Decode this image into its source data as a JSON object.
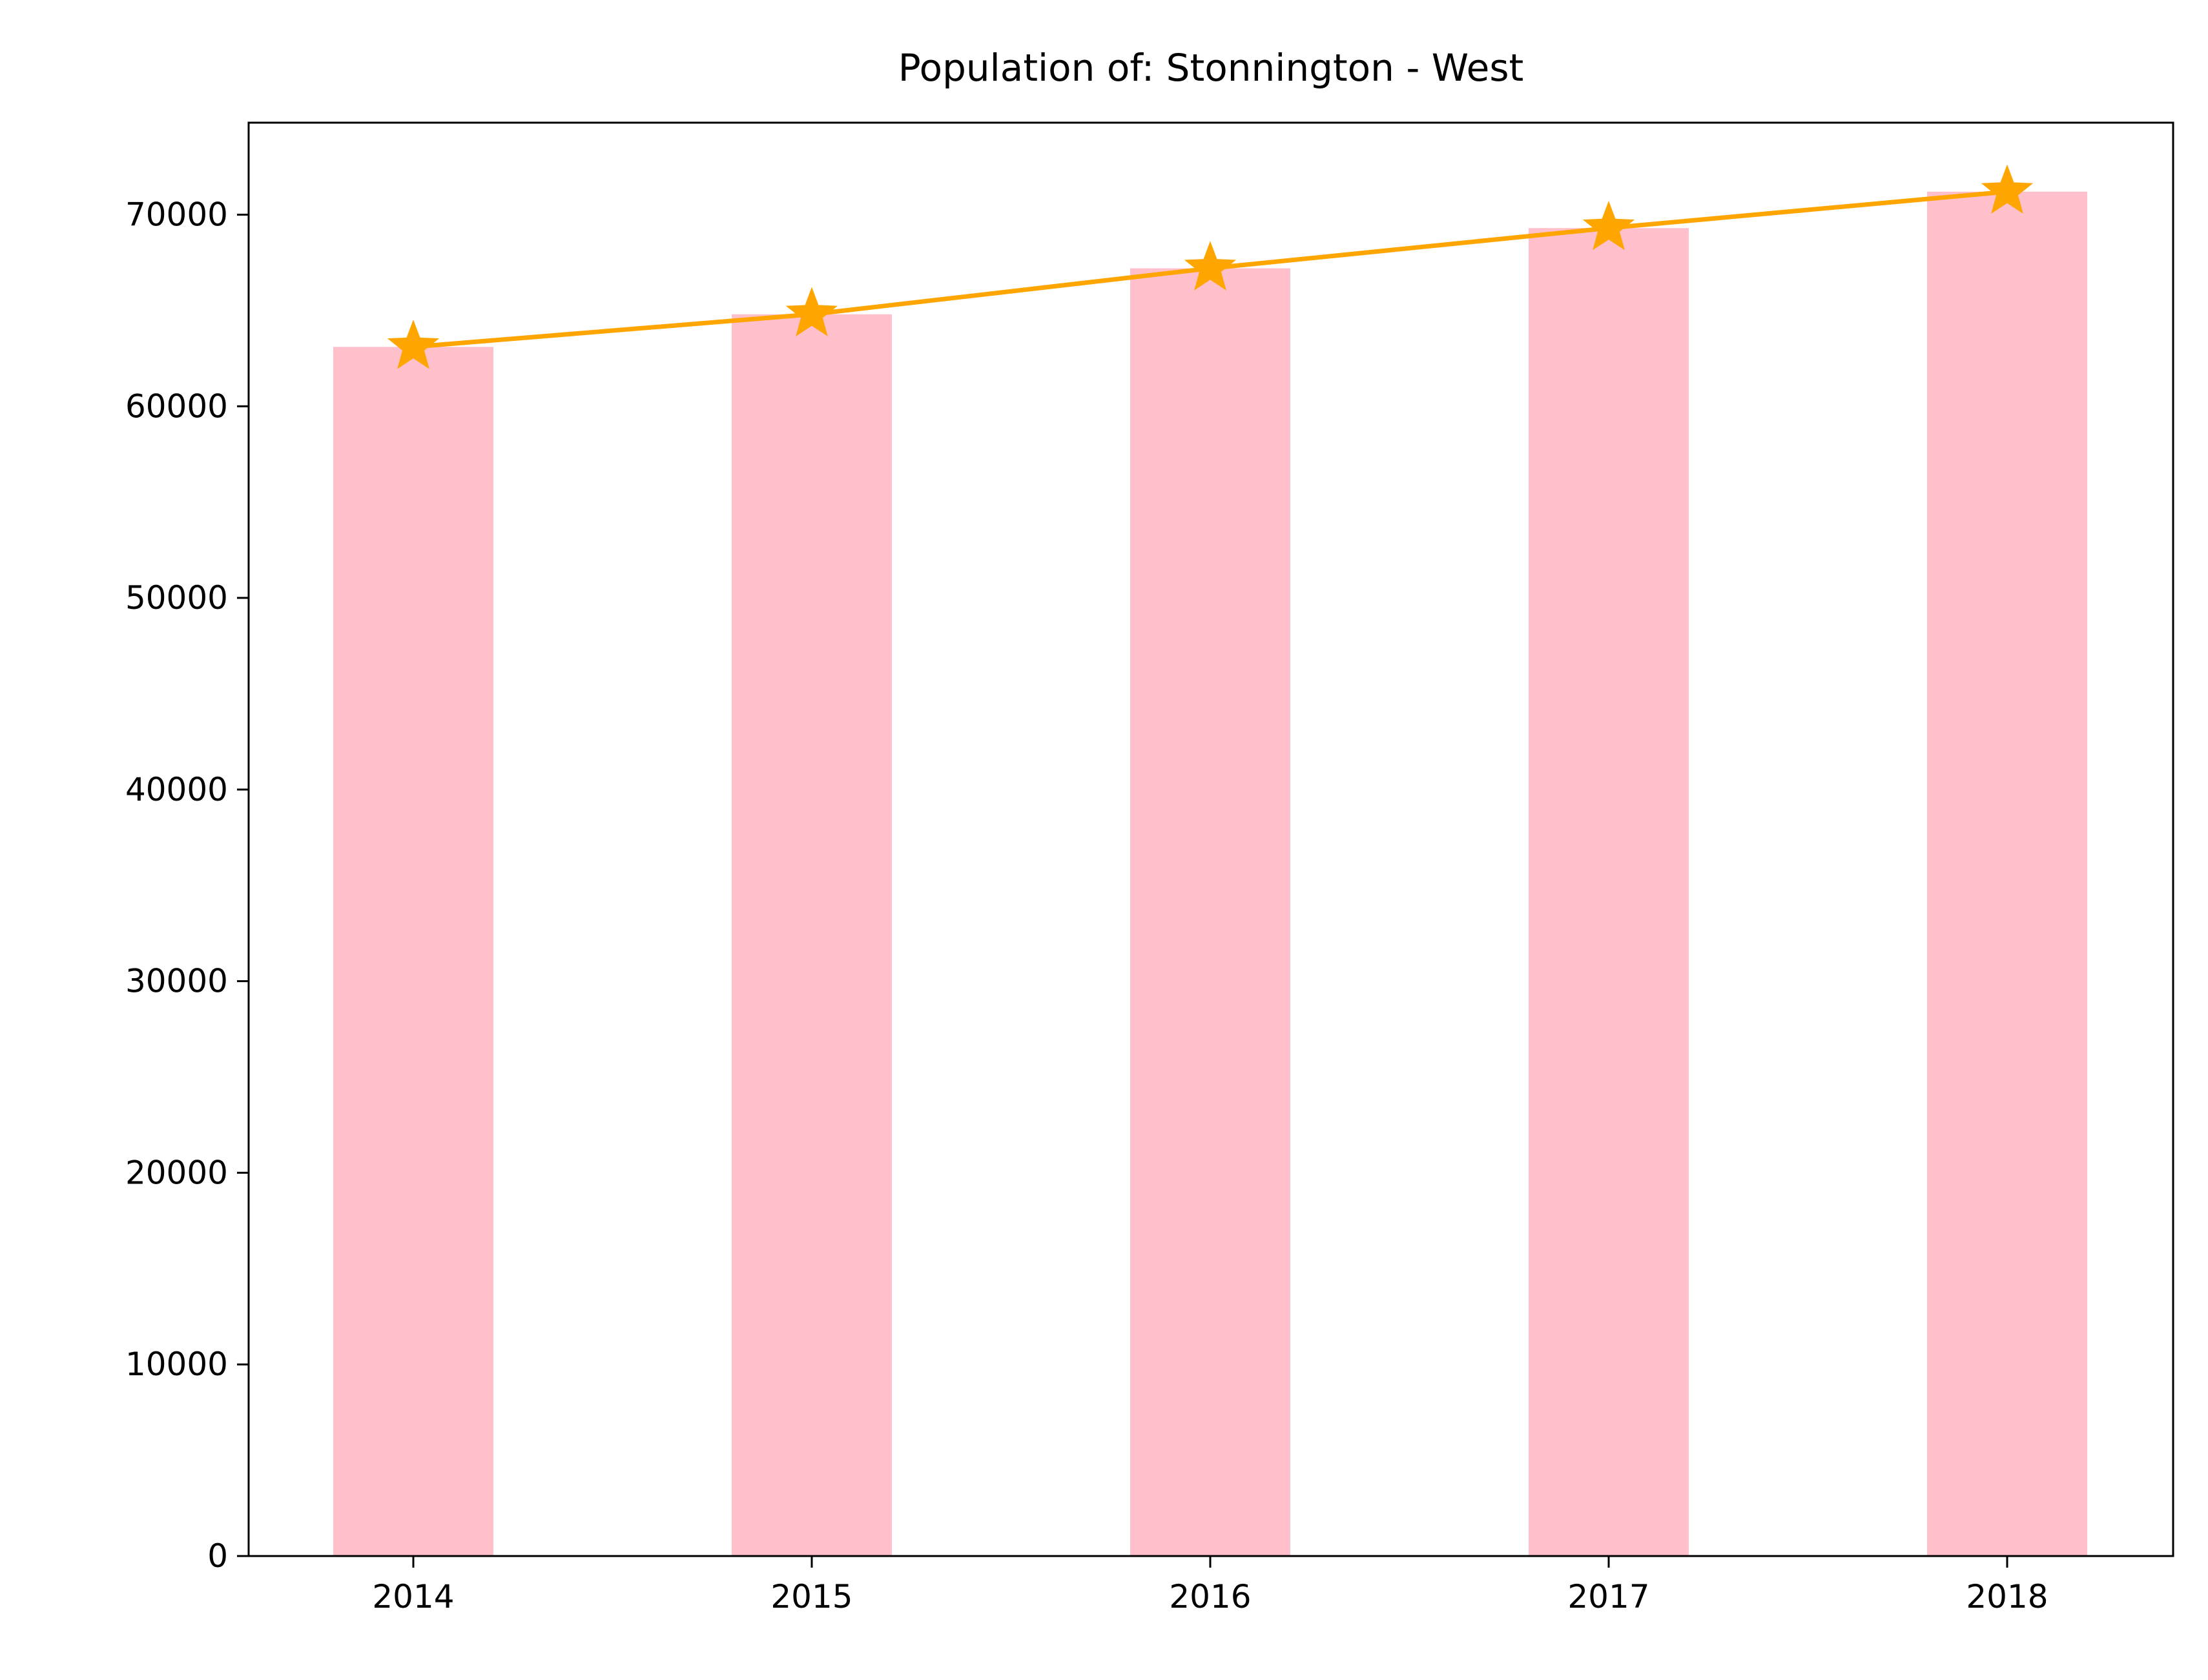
{
  "chart_data": {
    "type": "bar",
    "title": "Population of: Stonnington - West",
    "xlabel": "",
    "ylabel": "",
    "categories": [
      "2014",
      "2015",
      "2016",
      "2017",
      "2018"
    ],
    "series": [
      {
        "kind": "bar",
        "values": [
          63100,
          64800,
          67200,
          69300,
          71200
        ]
      },
      {
        "kind": "line",
        "marker": "star",
        "values": [
          63100,
          64800,
          67200,
          69300,
          71200
        ]
      }
    ],
    "ylim": [
      0,
      74800
    ],
    "yticks": [
      0,
      10000,
      20000,
      30000,
      40000,
      50000,
      60000,
      70000
    ],
    "grid": false,
    "legend": "none"
  },
  "colors": {
    "bar": "#ffc0cb",
    "line": "#ffa500",
    "axis": "#000000",
    "background": "#ffffff"
  }
}
